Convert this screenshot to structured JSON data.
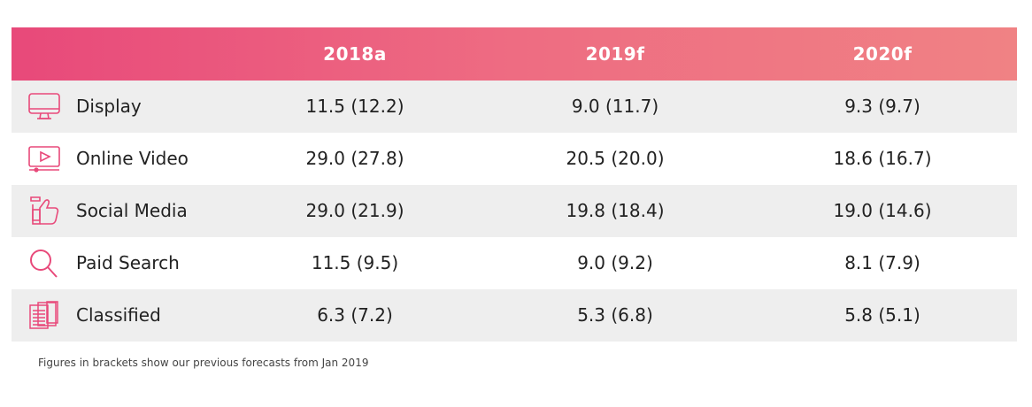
{
  "colors": {
    "accent": "#e8497a",
    "accent_end": "#f08284",
    "row_shade": "#eeeeee"
  },
  "table": {
    "columns": [
      "2018a",
      "2019f",
      "2020f"
    ],
    "rows": [
      {
        "label": "Display",
        "icon": "monitor-icon",
        "values": [
          "11.5 (12.2)",
          "9.0 (11.7)",
          "9.3 (9.7)"
        ]
      },
      {
        "label": "Online Video",
        "icon": "video-player-icon",
        "values": [
          "29.0 (27.8)",
          "20.5 (20.0)",
          "18.6 (16.7)"
        ]
      },
      {
        "label": "Social Media",
        "icon": "thumbs-up-icon",
        "values": [
          "29.0 (21.9)",
          "19.8 (18.4)",
          "19.0 (14.6)"
        ]
      },
      {
        "label": "Paid Search",
        "icon": "magnifier-icon",
        "values": [
          "11.5 (9.5)",
          "9.0 (9.2)",
          "8.1 (7.9)"
        ]
      },
      {
        "label": "Classified",
        "icon": "newspaper-icon",
        "values": [
          "6.3 (7.2)",
          "5.3 (6.8)",
          "5.8 (5.1)"
        ]
      }
    ]
  },
  "footnote": "Figures in brackets show our previous forecasts from Jan 2019"
}
